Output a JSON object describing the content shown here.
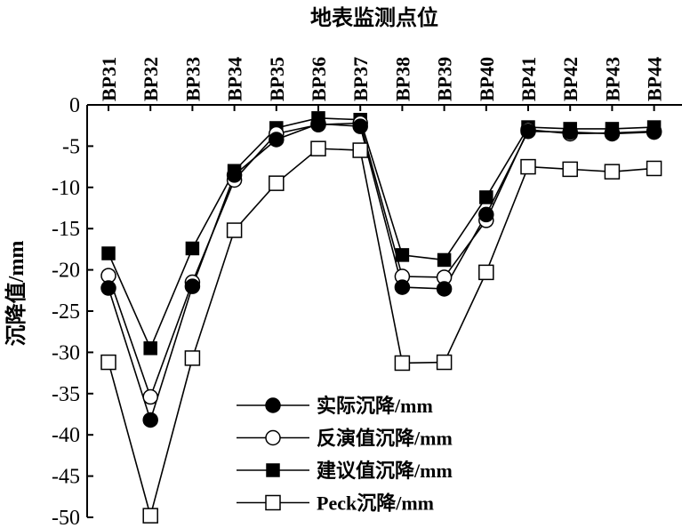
{
  "chart_data": {
    "type": "line",
    "title": "",
    "xlabel": "地表监测点位",
    "ylabel": "沉降值/mm",
    "categories": [
      "BP31",
      "BP32",
      "BP33",
      "BP34",
      "BP35",
      "BP36",
      "BP37",
      "BP38",
      "BP39",
      "BP40",
      "BP41",
      "BP42",
      "BP43",
      "BP44"
    ],
    "ylim": [
      -50,
      0
    ],
    "yticks": [
      0,
      -5,
      -10,
      -15,
      -20,
      -25,
      -30,
      -35,
      -40,
      -45,
      -50
    ],
    "x_axis_position": "top",
    "grid": false,
    "legend_position": "bottom-center",
    "series": [
      {
        "name": "实际沉降/mm",
        "marker": "filled-circle",
        "values": [
          -22.2,
          -38.2,
          -22.0,
          -8.5,
          -4.2,
          -2.3,
          -2.6,
          -22.1,
          -22.3,
          -13.3,
          -3.2,
          -3.3,
          -3.5,
          -3.3
        ]
      },
      {
        "name": "反演值沉降/mm",
        "marker": "open-circle",
        "values": [
          -20.7,
          -35.4,
          -21.5,
          -9.1,
          -3.5,
          -2.4,
          -2.2,
          -20.8,
          -20.9,
          -14.0,
          -3.0,
          -3.5,
          -3.4,
          -3.2
        ]
      },
      {
        "name": "建议值沉降/mm",
        "marker": "filled-square",
        "values": [
          -18.0,
          -29.5,
          -17.4,
          -8.0,
          -2.8,
          -1.6,
          -1.8,
          -18.2,
          -18.8,
          -11.2,
          -2.7,
          -2.9,
          -2.9,
          -2.7
        ]
      },
      {
        "name": "Peck沉降/mm",
        "marker": "open-square",
        "values": [
          -31.2,
          -49.8,
          -30.7,
          -15.2,
          -9.5,
          -5.3,
          -5.5,
          -31.3,
          -31.2,
          -20.3,
          -7.5,
          -7.8,
          -8.1,
          -7.7
        ]
      }
    ]
  }
}
